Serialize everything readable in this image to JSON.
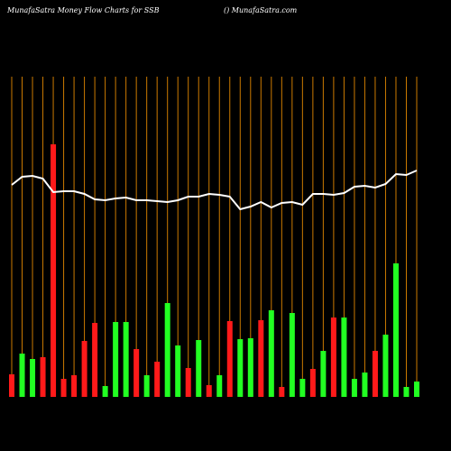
{
  "chart_data": {
    "type": "bar",
    "title": "MunafaSatra  Money Flow  Charts for SSB",
    "subtitle": "() MunafaSatra.com",
    "categories": [
      null,
      null,
      null,
      null,
      null,
      null,
      null,
      null,
      null,
      null,
      null,
      null,
      null,
      null,
      null,
      null,
      null,
      null,
      null,
      null,
      null,
      null,
      null,
      null,
      null,
      null,
      null,
      null,
      null,
      null,
      null,
      null,
      null,
      null,
      null,
      null,
      null,
      null,
      null,
      null
    ],
    "values": [
      25,
      48,
      42,
      44,
      280,
      20,
      24,
      62,
      82,
      12,
      83,
      83,
      53,
      24,
      39,
      104,
      57,
      32,
      63,
      13,
      24,
      84,
      64,
      65,
      85,
      96,
      11,
      93,
      20,
      31,
      51,
      88,
      88,
      20,
      27,
      51,
      69,
      148,
      11,
      17
    ],
    "colors": [
      "#ff1a1a",
      "#22ff22",
      "#22ff22",
      "#ff1a1a",
      "#ff1a1a",
      "#ff1a1a",
      "#ff1a1a",
      "#ff1a1a",
      "#ff1a1a",
      "#22ff22",
      "#22ff22",
      "#22ff22",
      "#ff1a1a",
      "#22ff22",
      "#ff1a1a",
      "#22ff22",
      "#22ff22",
      "#ff1a1a",
      "#22ff22",
      "#ff1a1a",
      "#22ff22",
      "#ff1a1a",
      "#22ff22",
      "#22ff22",
      "#ff1a1a",
      "#22ff22",
      "#ff1a1a",
      "#22ff22",
      "#22ff22",
      "#ff1a1a",
      "#22ff22",
      "#ff1a1a",
      "#22ff22",
      "#22ff22",
      "#22ff22",
      "#ff1a1a",
      "#22ff22",
      "#22ff22",
      "#22ff22",
      "#22ff22"
    ],
    "line": {
      "color": "#ffffff",
      "values": [
        235,
        244,
        245,
        242,
        227,
        228,
        228,
        225,
        219,
        218,
        220,
        221,
        218,
        218,
        217,
        216,
        218,
        222,
        222,
        225,
        224,
        222,
        208,
        211,
        216,
        210,
        215,
        216,
        213,
        225,
        225,
        224,
        226,
        233,
        234,
        232,
        236,
        247,
        246,
        251
      ]
    },
    "gridline_color": "#cc7a00",
    "ylim": [
      0,
      355
    ]
  }
}
